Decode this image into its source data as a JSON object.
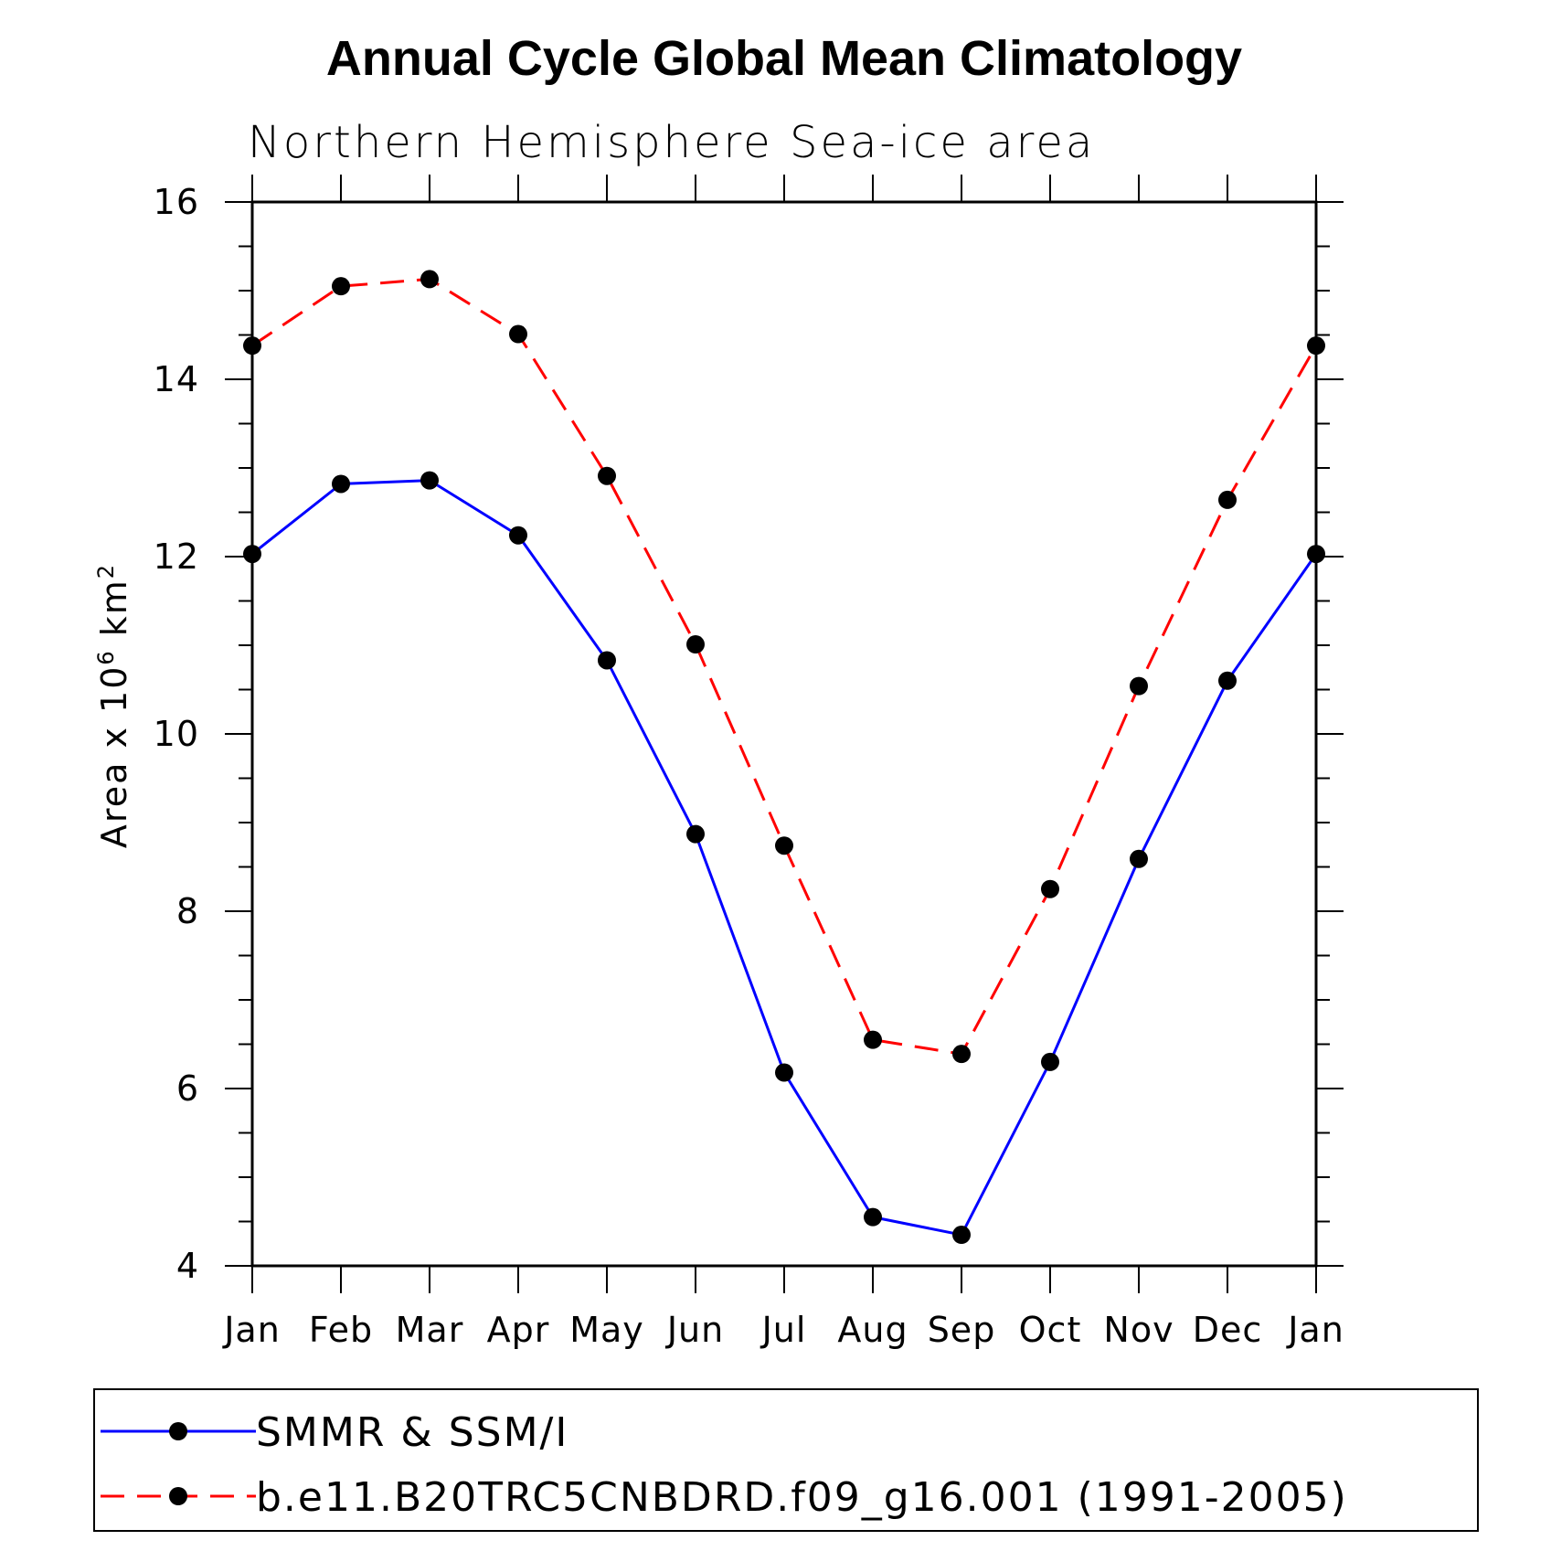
{
  "chart_data": {
    "type": "line",
    "title": "Annual Cycle Global Mean Climatology",
    "subtitle": "Northern Hemisphere Sea-ice area",
    "ylabel_prefix": "Area x 10",
    "ylabel_exp1": "6",
    "ylabel_mid": " km",
    "ylabel_exp2": "2",
    "xlabel": "",
    "categories": [
      "Jan",
      "Feb",
      "Mar",
      "Apr",
      "May",
      "Jun",
      "Jul",
      "Aug",
      "Sep",
      "Oct",
      "Nov",
      "Dec",
      "Jan"
    ],
    "ylim": [
      4,
      16
    ],
    "yticks": [
      4,
      6,
      8,
      10,
      12,
      14,
      16
    ],
    "series": [
      {
        "name": "SMMR & SSM/I",
        "color": "#0000ff",
        "line_style": "solid",
        "values": [
          12.03,
          12.82,
          12.86,
          12.24,
          10.83,
          8.87,
          6.18,
          4.55,
          4.35,
          6.3,
          8.59,
          10.6,
          12.03
        ]
      },
      {
        "name": "b.e11.B20TRC5CNBDRD.f09_g16.001 (1991-2005)",
        "color": "#ff0000",
        "line_style": "dashed",
        "values": [
          14.38,
          15.05,
          15.13,
          14.51,
          12.91,
          11.01,
          8.74,
          6.55,
          6.39,
          8.25,
          10.54,
          12.64,
          14.38
        ]
      }
    ],
    "marker": "filled-circle",
    "marker_color": "#000000",
    "legend_placement": "bottom",
    "grid": false
  }
}
